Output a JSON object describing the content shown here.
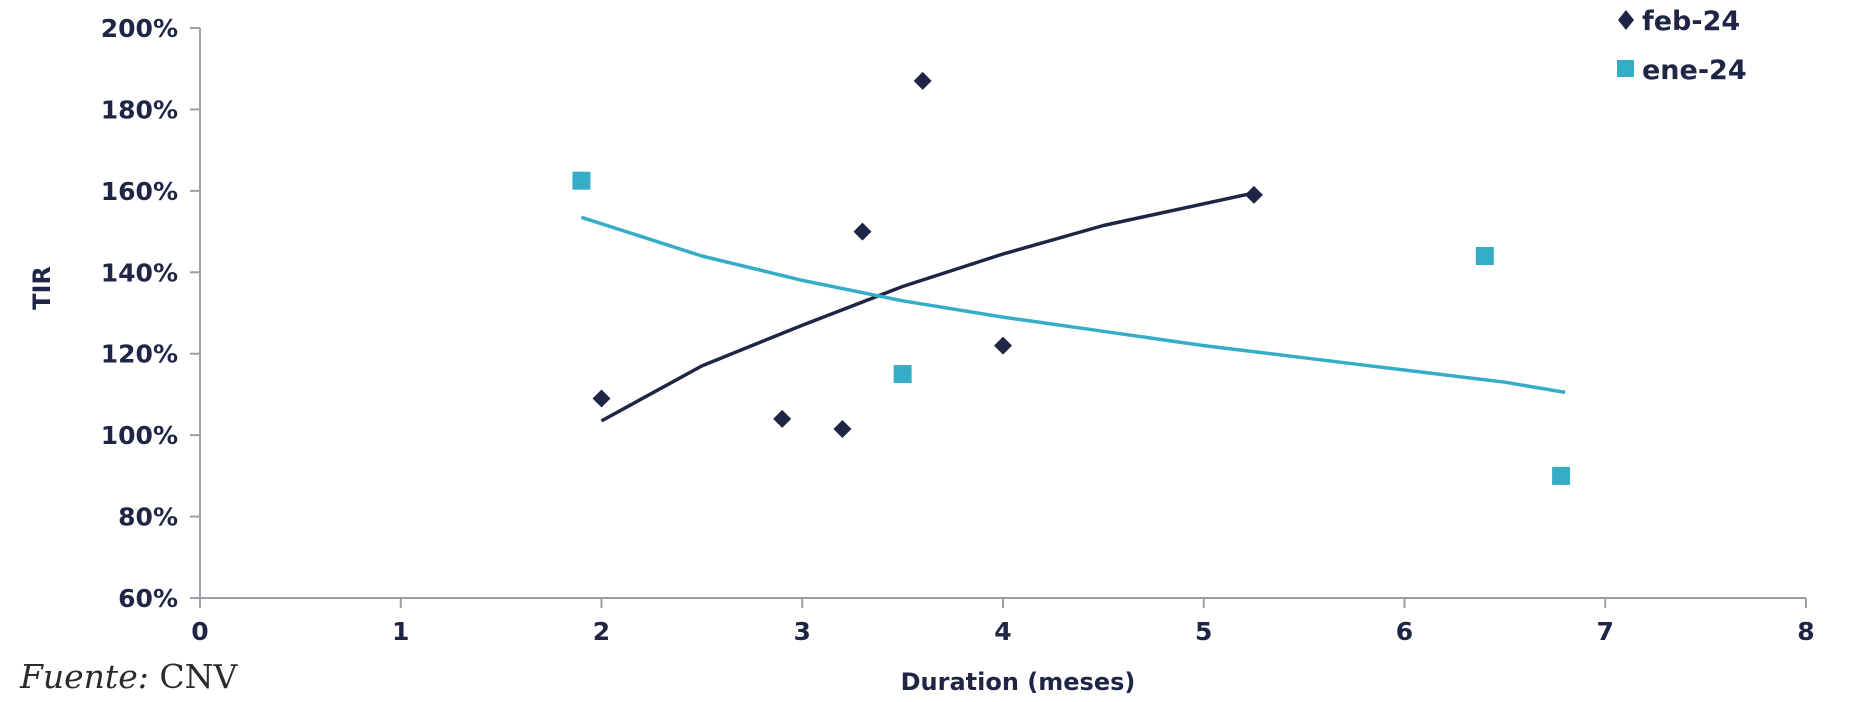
{
  "chart_data": {
    "type": "scatter",
    "xlabel": "Duration (meses)",
    "ylabel": "TIR",
    "xlim": [
      0,
      8
    ],
    "ylim": [
      60,
      200
    ],
    "x_ticks": [
      0,
      1,
      2,
      3,
      4,
      5,
      6,
      7,
      8
    ],
    "y_ticks": [
      60,
      80,
      100,
      120,
      140,
      160,
      180,
      200
    ],
    "y_tick_suffix": "%",
    "grid": false,
    "legend_position": "top-right",
    "series": [
      {
        "name": "feb-24",
        "color": "#1f2545",
        "marker": "diamond",
        "points": [
          {
            "x": 2.0,
            "y": 109
          },
          {
            "x": 2.9,
            "y": 104
          },
          {
            "x": 3.2,
            "y": 101.5
          },
          {
            "x": 3.3,
            "y": 150
          },
          {
            "x": 3.6,
            "y": 187
          },
          {
            "x": 4.0,
            "y": 122
          },
          {
            "x": 5.25,
            "y": 159
          }
        ],
        "trendline": [
          [
            2.0,
            103.5
          ],
          [
            2.5,
            117
          ],
          [
            3.0,
            127
          ],
          [
            3.5,
            136.5
          ],
          [
            4.0,
            144.5
          ],
          [
            4.5,
            151.5
          ],
          [
            5.25,
            159.5
          ]
        ]
      },
      {
        "name": "ene-24",
        "color": "#36adc7",
        "marker": "square",
        "points": [
          {
            "x": 1.9,
            "y": 162.5
          },
          {
            "x": 3.5,
            "y": 115
          },
          {
            "x": 6.4,
            "y": 144
          },
          {
            "x": 6.78,
            "y": 90
          }
        ],
        "trendline": [
          [
            1.9,
            153.5
          ],
          [
            2.5,
            144
          ],
          [
            3.0,
            138
          ],
          [
            3.5,
            133
          ],
          [
            4.0,
            129
          ],
          [
            4.5,
            125.5
          ],
          [
            5.0,
            122
          ],
          [
            5.5,
            119
          ],
          [
            6.0,
            116
          ],
          [
            6.5,
            113
          ],
          [
            6.8,
            110.5
          ]
        ]
      }
    ]
  },
  "source": {
    "label": "Fuente:",
    "value": "CNV"
  }
}
